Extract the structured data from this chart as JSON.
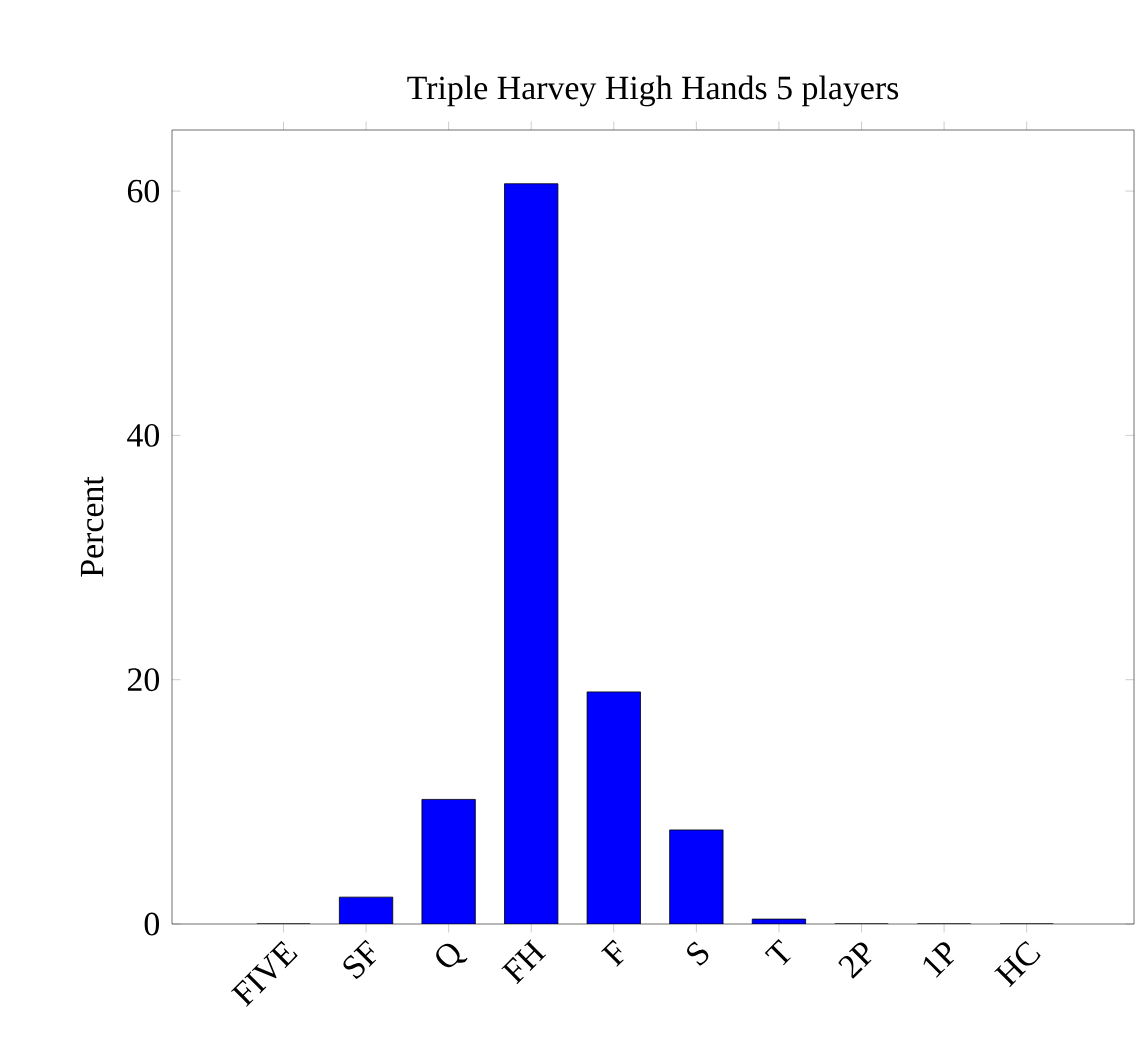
{
  "chart_data": {
    "type": "bar",
    "title": "Triple Harvey High Hands 5 players",
    "ylabel": "Percent",
    "categories": [
      "FIVE",
      "SF",
      "Q",
      "FH",
      "F",
      "S",
      "T",
      "2P",
      "1P",
      "HC"
    ],
    "values": [
      0,
      2.2,
      10.2,
      60.6,
      19.0,
      7.7,
      0.4,
      0,
      0,
      0
    ],
    "color": "#0000ff",
    "ylim": [
      0,
      65
    ],
    "yticks": [
      0,
      20,
      40,
      60
    ]
  }
}
